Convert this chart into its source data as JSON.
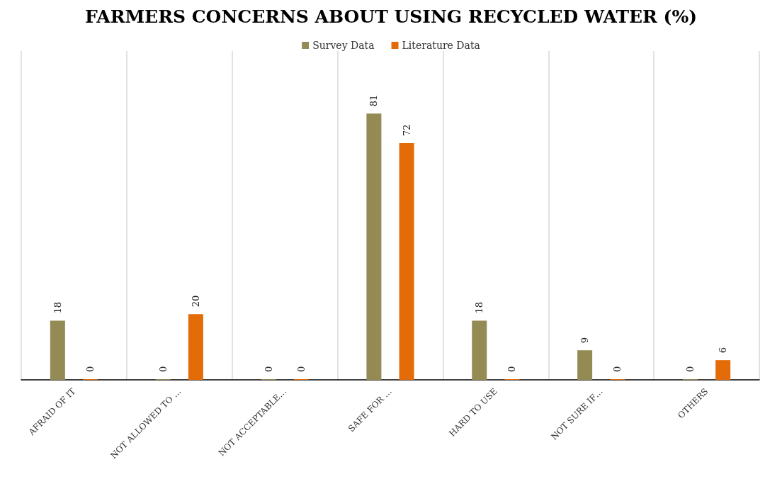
{
  "chart_data": {
    "type": "bar",
    "title": "FARMERS CONCERNS ABOUT USING RECYCLED WATER (%)",
    "categories": [
      "AFRAID OF IT",
      "NOT ALLOWED TO …",
      "NOT ACCEPTABLE…",
      "SAFE FOR …",
      "HARD TO USE",
      "NOT SURE IF…",
      "OTHERS"
    ],
    "series": [
      {
        "name": "Survey Data",
        "color": "#948a54",
        "values": [
          18,
          0,
          0,
          81,
          18,
          9,
          0
        ]
      },
      {
        "name": "Literature Data",
        "color": "#e36c09",
        "values": [
          0,
          20,
          0,
          72,
          0,
          0,
          6
        ]
      }
    ],
    "data_labels": true,
    "grid": "x",
    "legend": "top"
  }
}
